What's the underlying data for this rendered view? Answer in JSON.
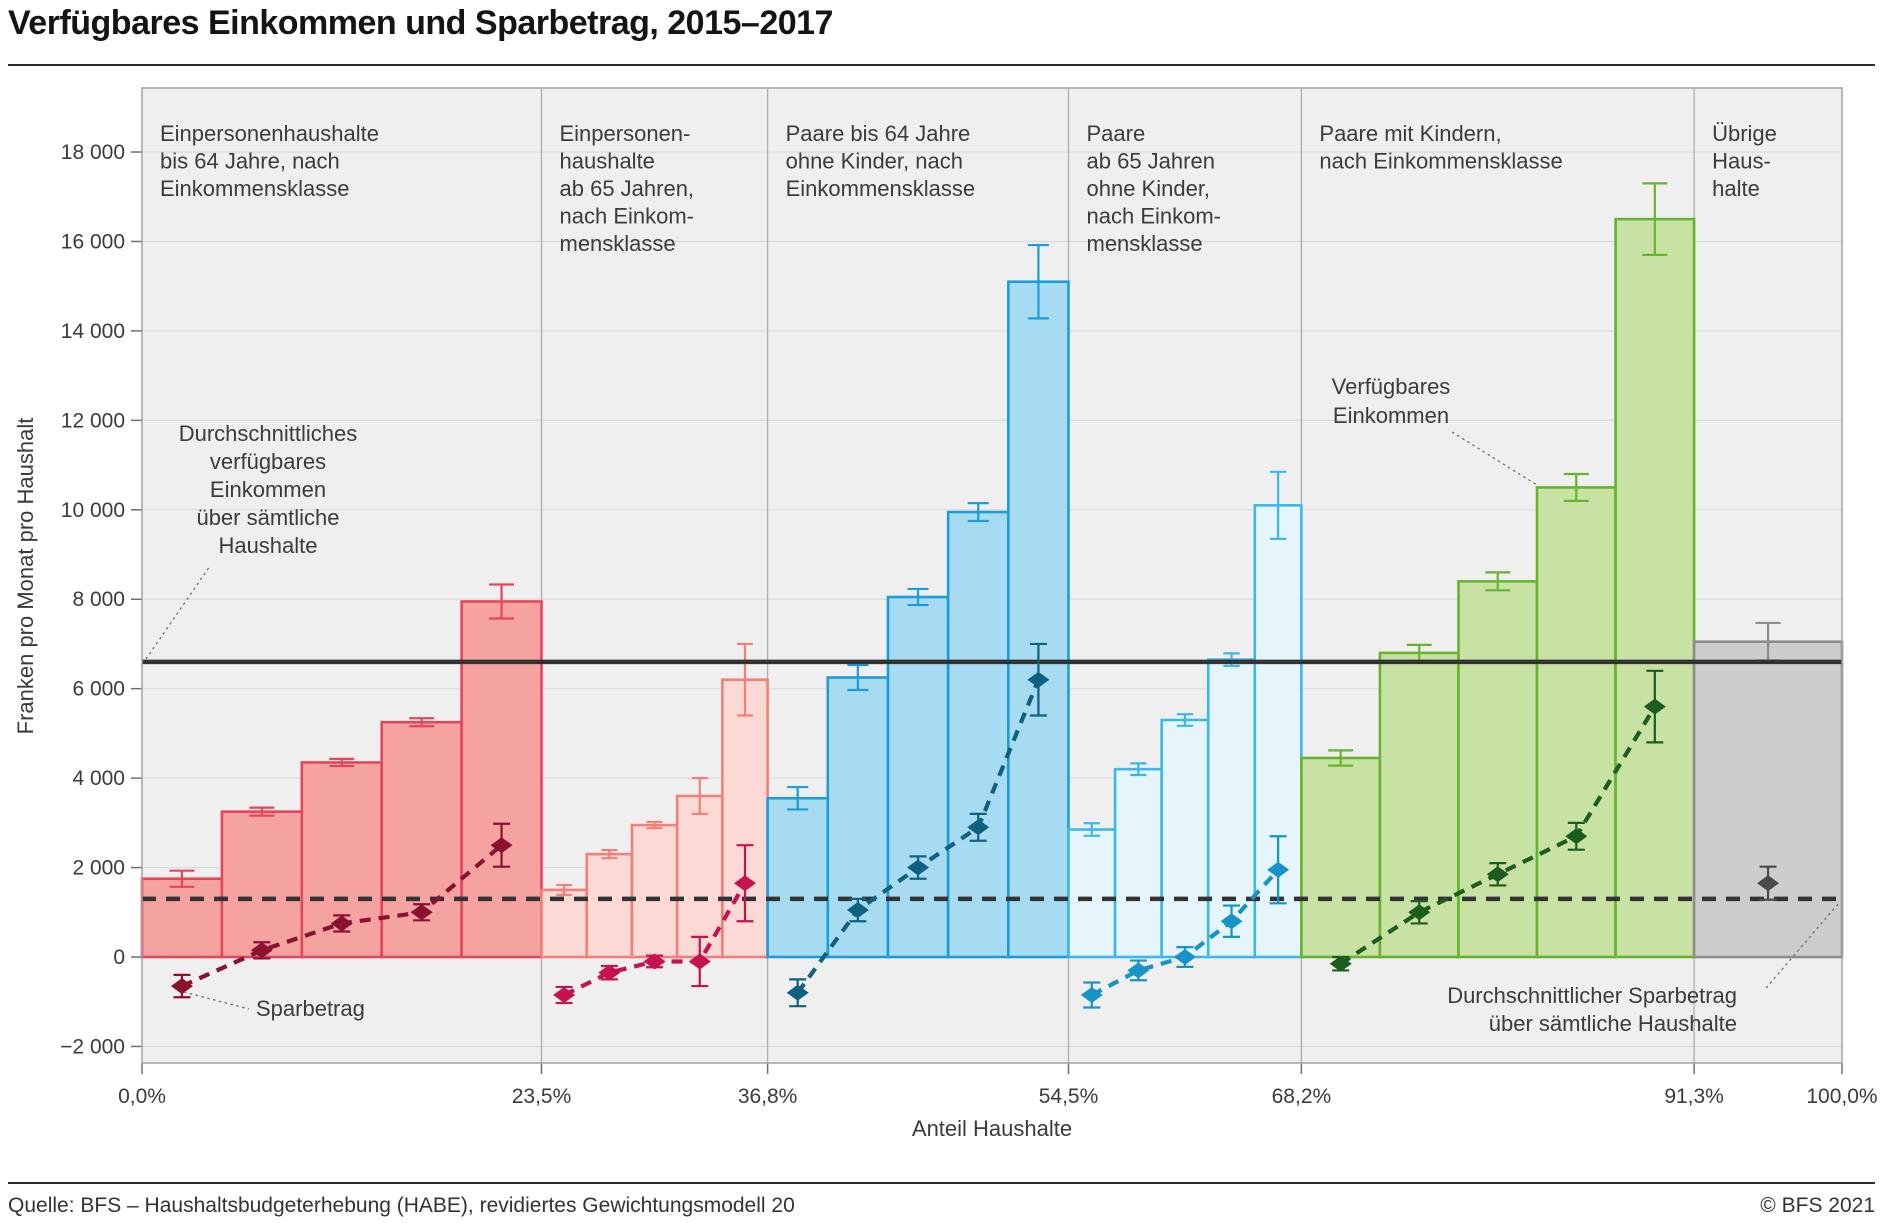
{
  "header": {
    "title": "Verfügbares Einkommen und Sparbetrag, 2015–2017"
  },
  "footer": {
    "source": "Quelle: BFS – Haushaltsbudgeterhebung (HABE), revidiertes Gewichtungsmodell 20",
    "copyright": "© BFS 2021"
  },
  "chart_data": {
    "type": "bar",
    "title": "Verfügbares Einkommen und Sparbetrag, 2015–2017",
    "xlabel": "Anteil Haushalte",
    "ylabel": "Franken pro Monat pro Haushalt",
    "ylim": [
      -2400,
      19400
    ],
    "grid": true,
    "style": {
      "plot_bg": "#EFEFEF",
      "grid_color": "#DBDBDB",
      "frame_color": "#A3A3A3",
      "divider_color": "#ADADAD",
      "tick_color": "#6F6F6F",
      "text_color": "#3B3B3B",
      "avg_line_color": "#333333",
      "leader_color": "#6E6E6E"
    },
    "yticks": [
      {
        "value": 18000,
        "label": "18 000"
      },
      {
        "value": 16000,
        "label": "16 000"
      },
      {
        "value": 14000,
        "label": "14 000"
      },
      {
        "value": 12000,
        "label": "12 000"
      },
      {
        "value": 10000,
        "label": "10 000"
      },
      {
        "value": 8000,
        "label": "8 000"
      },
      {
        "value": 6000,
        "label": "6 000"
      },
      {
        "value": 4000,
        "label": "4 000"
      },
      {
        "value": 2000,
        "label": "2 000"
      },
      {
        "value": 0,
        "label": "0"
      },
      {
        "value": -2000,
        "label": "−2 000"
      }
    ],
    "xticks": [
      {
        "pct": 0.0,
        "label": "0,0%"
      },
      {
        "pct": 23.5,
        "label": "23,5%"
      },
      {
        "pct": 36.8,
        "label": "36,8%"
      },
      {
        "pct": 54.5,
        "label": "54,5%"
      },
      {
        "pct": 68.2,
        "label": "68,2%"
      },
      {
        "pct": 91.3,
        "label": "91,3%"
      },
      {
        "pct": 100.0,
        "label": "100,0%"
      }
    ],
    "avg_income": {
      "value": 6600,
      "label_lines": [
        "Durchschnittliches",
        "verfügbares",
        "Einkommen",
        "über sämtliche",
        "Haushalte"
      ]
    },
    "avg_savings": {
      "value": 1300,
      "label_lines": [
        "Durchschnittlicher Sparbetrag",
        "über sämtliche Haushalte"
      ]
    },
    "series_labels": {
      "income_lines": [
        "Verfügbares",
        "Einkommen"
      ],
      "savings": "Sparbetrag"
    },
    "groups": [
      {
        "id": "einpersonen-bis-64",
        "label_lines": [
          "Einpersonenhaushalte",
          "bis 64 Jahre, nach",
          "Einkommensklasse"
        ],
        "start_pct": 0.0,
        "end_pct": 23.5,
        "colors": {
          "fill": "#F5A3A0",
          "stroke": "#E6455C",
          "savings": "#8A1130"
        },
        "income": [
          1750,
          3250,
          4350,
          5250,
          7950
        ],
        "income_err": [
          180,
          90,
          80,
          90,
          380
        ],
        "savings": [
          -650,
          150,
          750,
          1000,
          2500
        ],
        "savings_err": [
          250,
          180,
          180,
          180,
          480
        ]
      },
      {
        "id": "einpersonen-ab-65",
        "label_lines": [
          "Einpersonen-",
          "haushalte",
          "ab 65 Jahren,",
          "nach Einkom-",
          "mensklasse"
        ],
        "start_pct": 23.5,
        "end_pct": 36.8,
        "colors": {
          "fill": "#FBD9D4",
          "stroke": "#F08078",
          "savings": "#C4134E"
        },
        "income": [
          1500,
          2300,
          2950,
          3600,
          6200
        ],
        "income_err": [
          110,
          90,
          70,
          400,
          800
        ],
        "savings": [
          -850,
          -350,
          -100,
          -100,
          1650
        ],
        "savings_err": [
          180,
          150,
          130,
          550,
          850
        ]
      },
      {
        "id": "paare-bis-64",
        "label_lines": [
          "Paare bis 64 Jahre",
          "ohne Kinder, nach",
          "Einkommensklasse"
        ],
        "start_pct": 36.8,
        "end_pct": 54.5,
        "colors": {
          "fill": "#A6DBF2",
          "stroke": "#1E9CD8",
          "savings": "#0F617F"
        },
        "income": [
          3550,
          6250,
          8050,
          9950,
          15100
        ],
        "income_err": [
          250,
          280,
          180,
          200,
          820
        ],
        "savings": [
          -800,
          1050,
          2000,
          2900,
          6200
        ],
        "savings_err": [
          300,
          250,
          250,
          300,
          800
        ]
      },
      {
        "id": "paare-ab-65",
        "label_lines": [
          "Paare",
          "ab 65 Jahren",
          "ohne Kinder,",
          "nach Einkom-",
          "mensklasse"
        ],
        "start_pct": 54.5,
        "end_pct": 68.2,
        "colors": {
          "fill": "#E6F5FC",
          "stroke": "#3BB8E8",
          "savings": "#1793C6"
        },
        "income": [
          2850,
          4200,
          5300,
          6650,
          10100
        ],
        "income_err": [
          140,
          130,
          130,
          140,
          750
        ],
        "savings": [
          -850,
          -300,
          0,
          800,
          1950
        ],
        "savings_err": [
          280,
          220,
          220,
          350,
          750
        ]
      },
      {
        "id": "paare-mit-kindern",
        "label_lines": [
          "Paare mit Kindern,",
          "nach Einkommensklasse"
        ],
        "start_pct": 68.2,
        "end_pct": 91.3,
        "colors": {
          "fill": "#C8E2A4",
          "stroke": "#67B32E",
          "savings": "#1C5C1E"
        },
        "income": [
          4450,
          6800,
          8400,
          10500,
          16500
        ],
        "income_err": [
          170,
          180,
          200,
          300,
          800
        ],
        "savings": [
          -150,
          1000,
          1850,
          2700,
          5600
        ],
        "savings_err": [
          150,
          250,
          250,
          300,
          800
        ]
      },
      {
        "id": "uebrige-haushalte",
        "label_lines": [
          "Übrige",
          "Haus-",
          "halte"
        ],
        "start_pct": 91.3,
        "end_pct": 100.0,
        "colors": {
          "fill": "#CDCDCD",
          "stroke": "#8C8C8C",
          "savings": "#4A4A4A"
        },
        "income": [
          7050
        ],
        "income_err": [
          420
        ],
        "savings": [
          1650
        ],
        "savings_err": [
          370
        ]
      }
    ]
  }
}
